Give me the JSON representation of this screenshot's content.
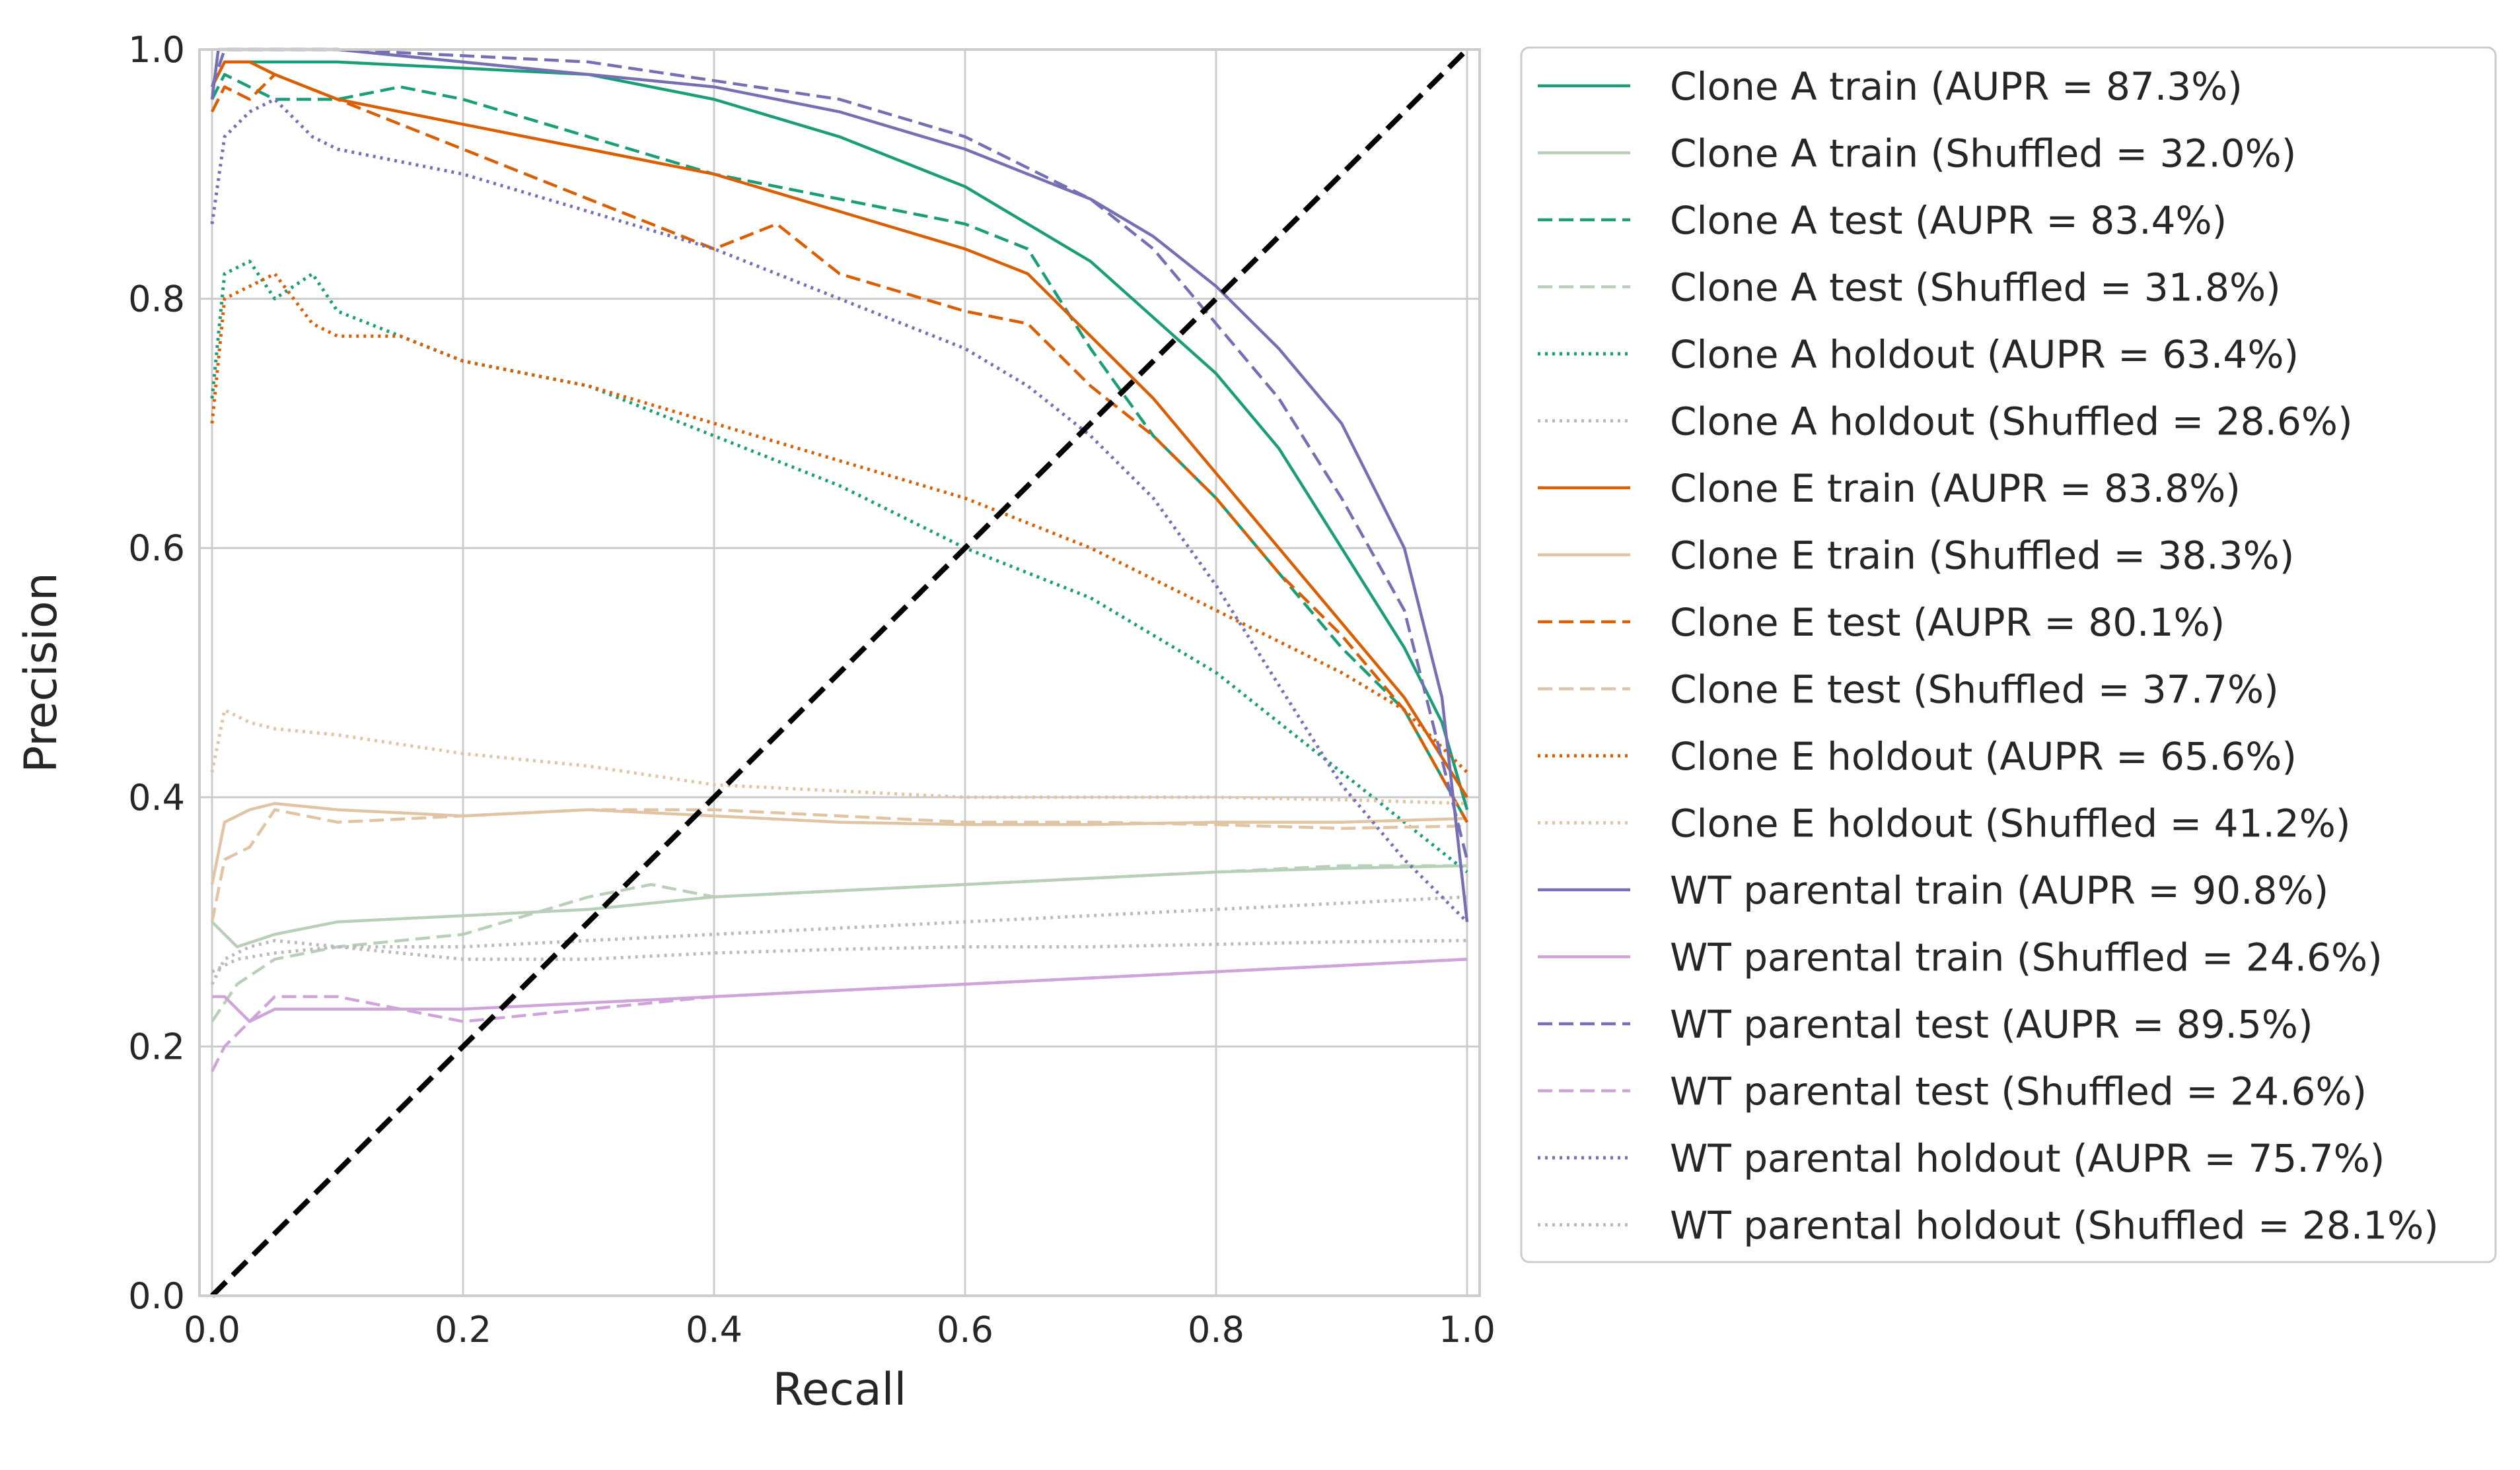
{
  "chart_data": {
    "type": "line",
    "title": "",
    "xlabel": "Recall",
    "ylabel": "Precision",
    "xlim": [
      -0.01,
      1.01
    ],
    "ylim": [
      0.0,
      1.0
    ],
    "grid": true,
    "legend_position": "outside-right",
    "x_ticks": [
      "0.0",
      "0.2",
      "0.4",
      "0.6",
      "0.8",
      "1.0"
    ],
    "y_ticks": [
      "0.0",
      "0.2",
      "0.4",
      "0.6",
      "0.8",
      "1.0"
    ],
    "diagonal": {
      "x": [
        0,
        1
      ],
      "y": [
        0,
        1
      ],
      "color": "#000000",
      "style": "dashed"
    },
    "series": [
      {
        "name": "Clone A train (AUPR = 87.3%)",
        "color": "#1b9e77",
        "style": "solid",
        "x": [
          0,
          0.01,
          0.05,
          0.1,
          0.2,
          0.3,
          0.4,
          0.5,
          0.6,
          0.7,
          0.8,
          0.85,
          0.9,
          0.95,
          0.98,
          1.0
        ],
        "y": [
          0.97,
          0.99,
          0.99,
          0.99,
          0.985,
          0.98,
          0.96,
          0.93,
          0.89,
          0.83,
          0.74,
          0.68,
          0.6,
          0.52,
          0.46,
          0.39
        ]
      },
      {
        "name": "Clone A train (Shuffled = 32.0%)",
        "color": "#b8cfb8",
        "style": "solid",
        "x": [
          0,
          0.02,
          0.05,
          0.1,
          0.2,
          0.3,
          0.4,
          0.5,
          0.6,
          0.7,
          0.8,
          0.9,
          1.0
        ],
        "y": [
          0.3,
          0.28,
          0.29,
          0.3,
          0.305,
          0.31,
          0.32,
          0.325,
          0.33,
          0.335,
          0.34,
          0.343,
          0.345
        ]
      },
      {
        "name": "Clone A test (AUPR = 83.4%)",
        "color": "#1b9e77",
        "style": "dashed",
        "x": [
          0,
          0.01,
          0.05,
          0.1,
          0.15,
          0.2,
          0.3,
          0.4,
          0.5,
          0.6,
          0.65,
          0.7,
          0.75,
          0.8,
          0.85,
          0.9,
          0.95,
          1.0
        ],
        "y": [
          0.96,
          0.98,
          0.96,
          0.96,
          0.97,
          0.96,
          0.93,
          0.9,
          0.88,
          0.86,
          0.84,
          0.76,
          0.69,
          0.64,
          0.58,
          0.52,
          0.47,
          0.38
        ]
      },
      {
        "name": "Clone A test (Shuffled = 31.8%)",
        "color": "#b8cfb8",
        "style": "dashed",
        "x": [
          0,
          0.02,
          0.05,
          0.1,
          0.2,
          0.3,
          0.35,
          0.4,
          0.5,
          0.6,
          0.7,
          0.8,
          0.9,
          1.0
        ],
        "y": [
          0.22,
          0.25,
          0.27,
          0.28,
          0.29,
          0.32,
          0.33,
          0.32,
          0.325,
          0.33,
          0.335,
          0.34,
          0.345,
          0.345
        ]
      },
      {
        "name": "Clone A holdout (AUPR = 63.4%)",
        "color": "#1b9e77",
        "style": "dotted",
        "x": [
          0,
          0.01,
          0.03,
          0.05,
          0.08,
          0.1,
          0.15,
          0.2,
          0.3,
          0.4,
          0.5,
          0.6,
          0.7,
          0.8,
          0.85,
          0.9,
          0.95,
          1.0
        ],
        "y": [
          0.72,
          0.82,
          0.83,
          0.8,
          0.82,
          0.79,
          0.77,
          0.75,
          0.73,
          0.69,
          0.65,
          0.6,
          0.56,
          0.5,
          0.46,
          0.42,
          0.38,
          0.34
        ]
      },
      {
        "name": "Clone A holdout (Shuffled = 28.6%)",
        "color": "#bbbbbb",
        "style": "dotted",
        "x": [
          0,
          0.02,
          0.05,
          0.1,
          0.2,
          0.3,
          0.4,
          0.5,
          0.6,
          0.7,
          0.8,
          0.9,
          1.0
        ],
        "y": [
          0.26,
          0.27,
          0.275,
          0.28,
          0.28,
          0.285,
          0.29,
          0.295,
          0.3,
          0.305,
          0.31,
          0.315,
          0.32
        ]
      },
      {
        "name": "Clone E train (AUPR = 83.8%)",
        "color": "#d95f02",
        "style": "solid",
        "x": [
          0,
          0.01,
          0.03,
          0.05,
          0.1,
          0.2,
          0.3,
          0.4,
          0.5,
          0.6,
          0.65,
          0.7,
          0.75,
          0.8,
          0.85,
          0.9,
          0.95,
          1.0
        ],
        "y": [
          0.97,
          0.99,
          0.99,
          0.98,
          0.96,
          0.94,
          0.92,
          0.9,
          0.87,
          0.84,
          0.82,
          0.77,
          0.72,
          0.66,
          0.6,
          0.54,
          0.48,
          0.4
        ]
      },
      {
        "name": "Clone E train (Shuffled = 38.3%)",
        "color": "#e0c4a4",
        "style": "solid",
        "x": [
          0,
          0.01,
          0.03,
          0.05,
          0.1,
          0.2,
          0.3,
          0.4,
          0.5,
          0.6,
          0.7,
          0.8,
          0.9,
          1.0
        ],
        "y": [
          0.33,
          0.38,
          0.39,
          0.395,
          0.39,
          0.385,
          0.39,
          0.385,
          0.38,
          0.378,
          0.378,
          0.38,
          0.38,
          0.383
        ]
      },
      {
        "name": "Clone E test (AUPR = 80.1%)",
        "color": "#d95f02",
        "style": "dashed",
        "x": [
          0,
          0.01,
          0.03,
          0.05,
          0.1,
          0.15,
          0.2,
          0.3,
          0.35,
          0.4,
          0.45,
          0.5,
          0.6,
          0.65,
          0.7,
          0.75,
          0.8,
          0.85,
          0.9,
          0.95,
          1.0
        ],
        "y": [
          0.95,
          0.97,
          0.96,
          0.98,
          0.96,
          0.94,
          0.92,
          0.88,
          0.86,
          0.84,
          0.86,
          0.82,
          0.79,
          0.78,
          0.73,
          0.69,
          0.64,
          0.58,
          0.53,
          0.47,
          0.38
        ]
      },
      {
        "name": "Clone E test (Shuffled = 37.7%)",
        "color": "#e0c4a4",
        "style": "dashed",
        "x": [
          0,
          0.01,
          0.03,
          0.05,
          0.1,
          0.2,
          0.3,
          0.4,
          0.5,
          0.6,
          0.7,
          0.8,
          0.9,
          1.0
        ],
        "y": [
          0.3,
          0.35,
          0.36,
          0.39,
          0.38,
          0.385,
          0.39,
          0.39,
          0.385,
          0.38,
          0.38,
          0.378,
          0.375,
          0.377
        ]
      },
      {
        "name": "Clone E holdout (AUPR = 65.6%)",
        "color": "#d95f02",
        "style": "dotted",
        "x": [
          0,
          0.01,
          0.03,
          0.05,
          0.08,
          0.1,
          0.15,
          0.2,
          0.3,
          0.4,
          0.5,
          0.6,
          0.7,
          0.8,
          0.9,
          0.95,
          1.0
        ],
        "y": [
          0.7,
          0.8,
          0.81,
          0.82,
          0.78,
          0.77,
          0.77,
          0.75,
          0.73,
          0.7,
          0.67,
          0.64,
          0.6,
          0.55,
          0.5,
          0.47,
          0.42
        ]
      },
      {
        "name": "Clone E holdout (Shuffled = 41.2%)",
        "color": "#e0c4a4",
        "style": "dotted",
        "x": [
          0,
          0.01,
          0.03,
          0.05,
          0.1,
          0.2,
          0.3,
          0.4,
          0.5,
          0.6,
          0.7,
          0.8,
          0.9,
          1.0
        ],
        "y": [
          0.42,
          0.47,
          0.46,
          0.455,
          0.45,
          0.435,
          0.425,
          0.41,
          0.405,
          0.4,
          0.4,
          0.4,
          0.398,
          0.395
        ]
      },
      {
        "name": "WT parental train (AUPR = 90.8%)",
        "color": "#7570b3",
        "style": "solid",
        "x": [
          0,
          0.005,
          0.02,
          0.05,
          0.1,
          0.2,
          0.3,
          0.4,
          0.5,
          0.6,
          0.7,
          0.75,
          0.8,
          0.85,
          0.9,
          0.95,
          0.98,
          1.0
        ],
        "y": [
          0.96,
          1.0,
          1.0,
          1.0,
          1.0,
          0.99,
          0.98,
          0.97,
          0.95,
          0.92,
          0.88,
          0.85,
          0.81,
          0.76,
          0.7,
          0.6,
          0.48,
          0.3
        ]
      },
      {
        "name": "WT parental train (Shuffled = 24.6%)",
        "color": "#cfa4d9",
        "style": "solid",
        "x": [
          0,
          0.01,
          0.03,
          0.05,
          0.1,
          0.2,
          0.3,
          0.4,
          0.5,
          0.6,
          0.7,
          0.8,
          0.9,
          1.0
        ],
        "y": [
          0.24,
          0.24,
          0.22,
          0.23,
          0.23,
          0.23,
          0.235,
          0.24,
          0.245,
          0.25,
          0.255,
          0.26,
          0.265,
          0.27
        ]
      },
      {
        "name": "WT parental test (AUPR = 89.5%)",
        "color": "#7570b3",
        "style": "dashed",
        "x": [
          0,
          0.01,
          0.05,
          0.1,
          0.2,
          0.3,
          0.4,
          0.5,
          0.6,
          0.7,
          0.75,
          0.8,
          0.85,
          0.9,
          0.95,
          1.0
        ],
        "y": [
          0.97,
          1.0,
          1.0,
          1.0,
          0.995,
          0.99,
          0.975,
          0.96,
          0.93,
          0.88,
          0.84,
          0.78,
          0.72,
          0.64,
          0.55,
          0.35
        ]
      },
      {
        "name": "WT parental test (Shuffled = 24.6%)",
        "color": "#cfa4d9",
        "style": "dashed",
        "x": [
          0,
          0.01,
          0.03,
          0.05,
          0.1,
          0.2,
          0.3,
          0.4,
          0.5,
          0.6,
          0.7,
          0.8,
          0.9,
          1.0
        ],
        "y": [
          0.18,
          0.2,
          0.22,
          0.24,
          0.24,
          0.22,
          0.23,
          0.24,
          0.245,
          0.25,
          0.255,
          0.26,
          0.265,
          0.27
        ]
      },
      {
        "name": "WT parental holdout (AUPR = 75.7%)",
        "color": "#7570b3",
        "style": "dotted",
        "x": [
          0,
          0.01,
          0.03,
          0.05,
          0.08,
          0.1,
          0.2,
          0.3,
          0.4,
          0.5,
          0.6,
          0.65,
          0.7,
          0.75,
          0.8,
          0.85,
          0.9,
          0.95,
          1.0
        ],
        "y": [
          0.86,
          0.93,
          0.95,
          0.96,
          0.93,
          0.92,
          0.9,
          0.87,
          0.84,
          0.8,
          0.76,
          0.73,
          0.69,
          0.64,
          0.57,
          0.49,
          0.41,
          0.35,
          0.3
        ]
      },
      {
        "name": "WT parental holdout (Shuffled = 28.1%)",
        "color": "#bbbbbb",
        "style": "dotted",
        "x": [
          0,
          0.01,
          0.03,
          0.05,
          0.1,
          0.2,
          0.3,
          0.4,
          0.5,
          0.6,
          0.7,
          0.8,
          0.9,
          1.0
        ],
        "y": [
          0.25,
          0.27,
          0.28,
          0.285,
          0.28,
          0.27,
          0.27,
          0.275,
          0.278,
          0.28,
          0.28,
          0.282,
          0.284,
          0.285
        ]
      }
    ]
  }
}
